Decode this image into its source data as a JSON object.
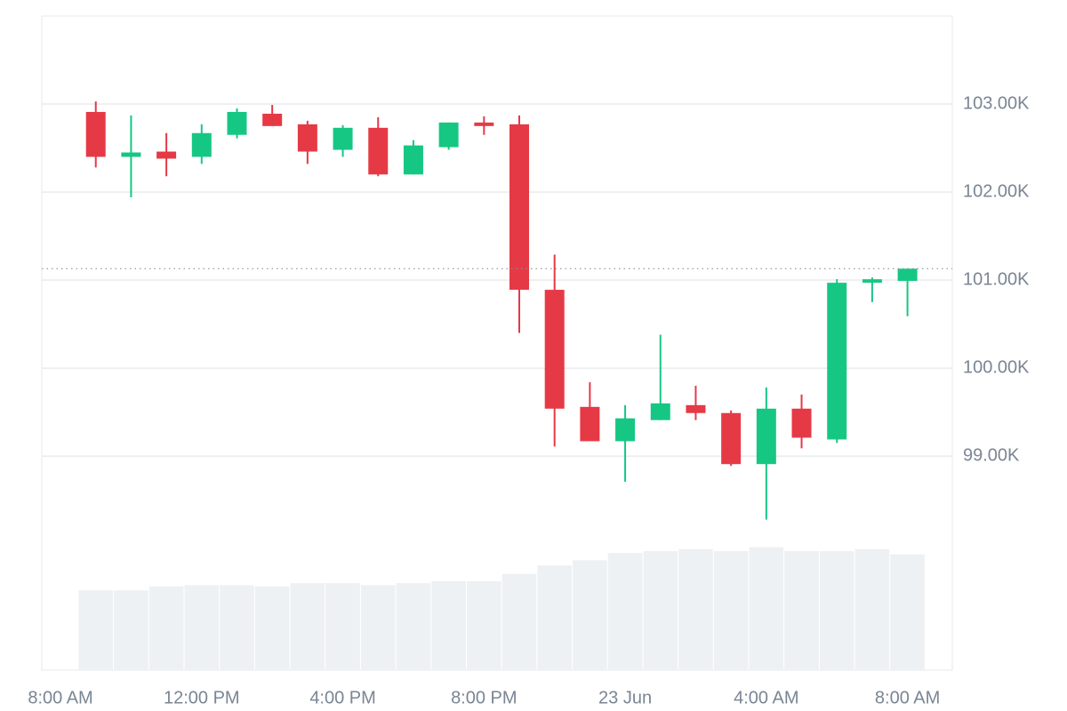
{
  "chart_data": {
    "type": "candlestick",
    "x": [
      1,
      2,
      3,
      4,
      5,
      6,
      7,
      8,
      9,
      10,
      11,
      12,
      13,
      14,
      15,
      16,
      17,
      18,
      19,
      20,
      21,
      22,
      23,
      24
    ],
    "open": [
      102910,
      102400,
      102460,
      102400,
      102650,
      102890,
      102770,
      102480,
      102730,
      102200,
      102510,
      102790,
      102770,
      100890,
      99560,
      99170,
      99410,
      99580,
      99490,
      98910,
      99540,
      99190,
      100970,
      100990
    ],
    "high": [
      103030,
      102870,
      102670,
      102770,
      102950,
      102990,
      102810,
      102760,
      102850,
      102590,
      102790,
      102860,
      102870,
      101290,
      99840,
      99580,
      100380,
      99800,
      99520,
      99780,
      99700,
      101010,
      101030,
      101130
    ],
    "low": [
      102280,
      101940,
      102180,
      102320,
      102610,
      102750,
      102320,
      102400,
      102180,
      102200,
      102480,
      102650,
      100400,
      99110,
      99170,
      98710,
      99410,
      99410,
      98890,
      98280,
      99090,
      99150,
      100750,
      100590
    ],
    "close": [
      102400,
      102450,
      102380,
      102670,
      102910,
      102750,
      102460,
      102730,
      102200,
      102530,
      102790,
      102750,
      100890,
      99540,
      99170,
      99430,
      99600,
      99490,
      98910,
      99540,
      99210,
      100970,
      101010,
      101130
    ],
    "volume": [
      12.2,
      12.2,
      12.8,
      13.0,
      13.0,
      12.8,
      13.3,
      13.3,
      13.0,
      13.3,
      13.6,
      13.6,
      14.7,
      16.0,
      16.8,
      17.9,
      18.2,
      18.5,
      18.2,
      18.8,
      18.2,
      18.2,
      18.5,
      17.7
    ],
    "xlim": [
      -0.53,
      25.27
    ],
    "xticks": [
      {
        "value": 0,
        "label": "8:00 AM"
      },
      {
        "value": 4,
        "label": "12:00 PM"
      },
      {
        "value": 8,
        "label": "4:00 PM"
      },
      {
        "value": 12,
        "label": "8:00 PM"
      },
      {
        "value": 16,
        "label": "23 Jun"
      },
      {
        "value": 20,
        "label": "4:00 AM"
      },
      {
        "value": 24,
        "label": "8:00 AM"
      }
    ],
    "ylim": [
      96570,
      104000
    ],
    "yticks": [
      {
        "value": 99000,
        "label": "99.00K"
      },
      {
        "value": 100000,
        "label": "100.00K"
      },
      {
        "value": 101000,
        "label": "101.00K"
      },
      {
        "value": 102000,
        "label": "102.00K"
      },
      {
        "value": 103000,
        "label": "103.00K"
      }
    ],
    "volume_lim": [
      0,
      100
    ],
    "up_color": "#16c784",
    "down_color": "#e63946",
    "volume_color": "#eef1f4",
    "grid": true,
    "last_price_line": true
  }
}
